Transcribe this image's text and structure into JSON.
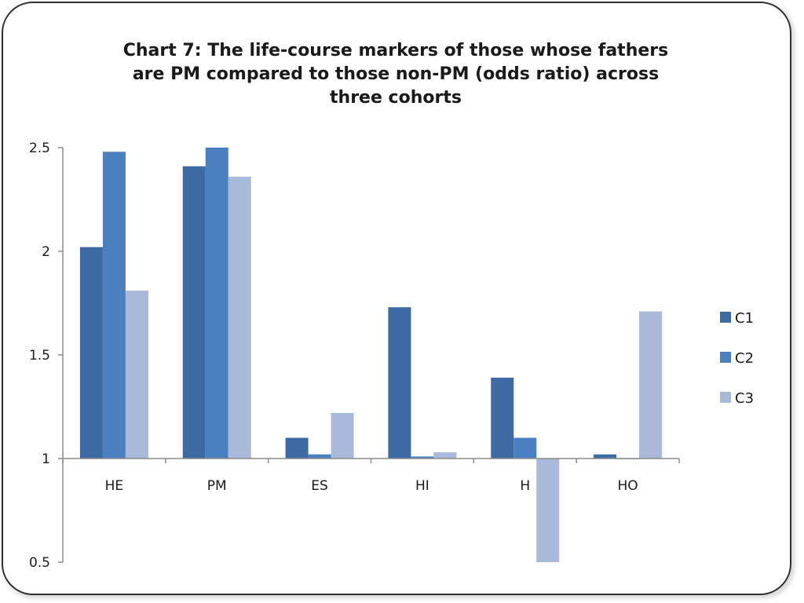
{
  "chart_data": {
    "type": "bar",
    "title_lines": [
      "Chart 7: The life-course markers of those whose fathers",
      "are PM compared to those non-PM (odds ratio) across",
      "three cohorts"
    ],
    "categories": [
      "HE",
      "PM",
      "ES",
      "HI",
      "H",
      "HO"
    ],
    "series": [
      {
        "name": "C1",
        "color": "#3d6aa3",
        "values": [
          2.02,
          2.41,
          1.1,
          1.73,
          1.39,
          1.02
        ]
      },
      {
        "name": "C2",
        "color": "#4a80c0",
        "values": [
          2.48,
          2.5,
          1.02,
          1.01,
          1.1,
          1.0
        ]
      },
      {
        "name": "C3",
        "color": "#a9b9d9",
        "values": [
          1.81,
          2.36,
          1.22,
          1.03,
          0.5,
          1.71
        ]
      }
    ],
    "baseline": 1,
    "ylim": [
      0.5,
      2.5
    ],
    "yticks": [
      "0.5",
      "1",
      "1.5",
      "2",
      "2.5"
    ],
    "legend_position": "right",
    "grid": false
  }
}
